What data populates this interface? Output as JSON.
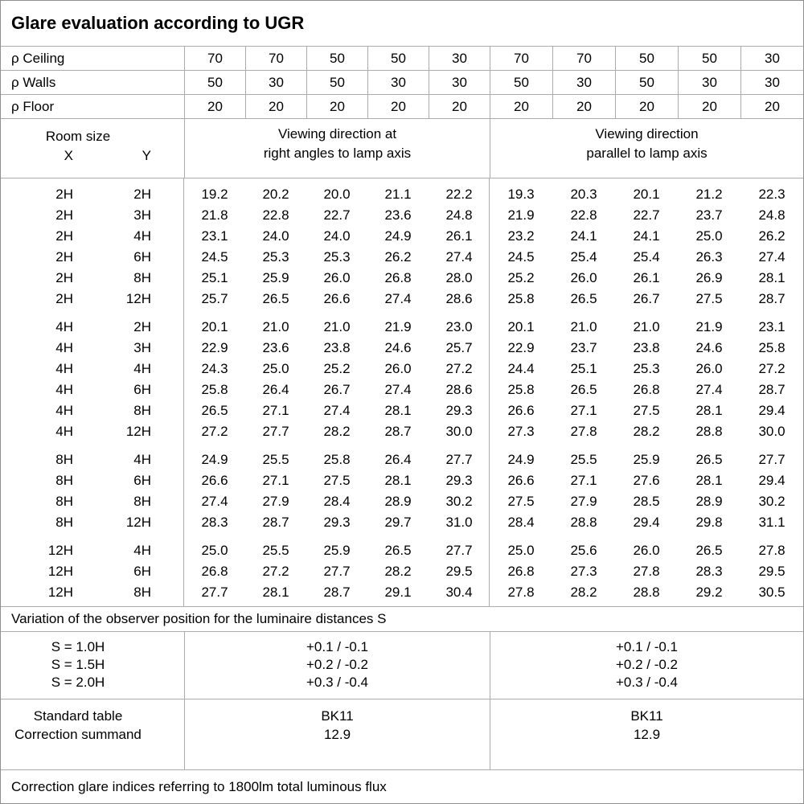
{
  "title": "Glare evaluation according to UGR",
  "header": {
    "rho_ceiling": {
      "label": "ρ Ceiling",
      "values": [
        "70",
        "70",
        "50",
        "50",
        "30",
        "70",
        "70",
        "50",
        "50",
        "30"
      ]
    },
    "rho_walls": {
      "label": "ρ Walls",
      "values": [
        "50",
        "30",
        "50",
        "30",
        "30",
        "50",
        "30",
        "50",
        "30",
        "30"
      ]
    },
    "rho_floor": {
      "label": "ρ Floor",
      "values": [
        "20",
        "20",
        "20",
        "20",
        "20",
        "20",
        "20",
        "20",
        "20",
        "20"
      ]
    },
    "room_size": {
      "label": "Room size",
      "x": "X",
      "y": "Y"
    },
    "group_left": {
      "line1": "Viewing direction at",
      "line2": "right angles to lamp axis"
    },
    "group_right": {
      "line1": "Viewing direction",
      "line2": "parallel to lamp axis"
    }
  },
  "blocks": [
    {
      "rows": [
        {
          "x": "2H",
          "y": "2H",
          "left": [
            "19.2",
            "20.2",
            "20.0",
            "21.1",
            "22.2"
          ],
          "right": [
            "19.3",
            "20.3",
            "20.1",
            "21.2",
            "22.3"
          ]
        },
        {
          "x": "2H",
          "y": "3H",
          "left": [
            "21.8",
            "22.8",
            "22.7",
            "23.6",
            "24.8"
          ],
          "right": [
            "21.9",
            "22.8",
            "22.7",
            "23.7",
            "24.8"
          ]
        },
        {
          "x": "2H",
          "y": "4H",
          "left": [
            "23.1",
            "24.0",
            "24.0",
            "24.9",
            "26.1"
          ],
          "right": [
            "23.2",
            "24.1",
            "24.1",
            "25.0",
            "26.2"
          ]
        },
        {
          "x": "2H",
          "y": "6H",
          "left": [
            "24.5",
            "25.3",
            "25.3",
            "26.2",
            "27.4"
          ],
          "right": [
            "24.5",
            "25.4",
            "25.4",
            "26.3",
            "27.4"
          ]
        },
        {
          "x": "2H",
          "y": "8H",
          "left": [
            "25.1",
            "25.9",
            "26.0",
            "26.8",
            "28.0"
          ],
          "right": [
            "25.2",
            "26.0",
            "26.1",
            "26.9",
            "28.1"
          ]
        },
        {
          "x": "2H",
          "y": "12H",
          "left": [
            "25.7",
            "26.5",
            "26.6",
            "27.4",
            "28.6"
          ],
          "right": [
            "25.8",
            "26.5",
            "26.7",
            "27.5",
            "28.7"
          ]
        }
      ]
    },
    {
      "rows": [
        {
          "x": "4H",
          "y": "2H",
          "left": [
            "20.1",
            "21.0",
            "21.0",
            "21.9",
            "23.0"
          ],
          "right": [
            "20.1",
            "21.0",
            "21.0",
            "21.9",
            "23.1"
          ]
        },
        {
          "x": "4H",
          "y": "3H",
          "left": [
            "22.9",
            "23.6",
            "23.8",
            "24.6",
            "25.7"
          ],
          "right": [
            "22.9",
            "23.7",
            "23.8",
            "24.6",
            "25.8"
          ]
        },
        {
          "x": "4H",
          "y": "4H",
          "left": [
            "24.3",
            "25.0",
            "25.2",
            "26.0",
            "27.2"
          ],
          "right": [
            "24.4",
            "25.1",
            "25.3",
            "26.0",
            "27.2"
          ]
        },
        {
          "x": "4H",
          "y": "6H",
          "left": [
            "25.8",
            "26.4",
            "26.7",
            "27.4",
            "28.6"
          ],
          "right": [
            "25.8",
            "26.5",
            "26.8",
            "27.4",
            "28.7"
          ]
        },
        {
          "x": "4H",
          "y": "8H",
          "left": [
            "26.5",
            "27.1",
            "27.4",
            "28.1",
            "29.3"
          ],
          "right": [
            "26.6",
            "27.1",
            "27.5",
            "28.1",
            "29.4"
          ]
        },
        {
          "x": "4H",
          "y": "12H",
          "left": [
            "27.2",
            "27.7",
            "28.2",
            "28.7",
            "30.0"
          ],
          "right": [
            "27.3",
            "27.8",
            "28.2",
            "28.8",
            "30.0"
          ]
        }
      ]
    },
    {
      "rows": [
        {
          "x": "8H",
          "y": "4H",
          "left": [
            "24.9",
            "25.5",
            "25.8",
            "26.4",
            "27.7"
          ],
          "right": [
            "24.9",
            "25.5",
            "25.9",
            "26.5",
            "27.7"
          ]
        },
        {
          "x": "8H",
          "y": "6H",
          "left": [
            "26.6",
            "27.1",
            "27.5",
            "28.1",
            "29.3"
          ],
          "right": [
            "26.6",
            "27.1",
            "27.6",
            "28.1",
            "29.4"
          ]
        },
        {
          "x": "8H",
          "y": "8H",
          "left": [
            "27.4",
            "27.9",
            "28.4",
            "28.9",
            "30.2"
          ],
          "right": [
            "27.5",
            "27.9",
            "28.5",
            "28.9",
            "30.2"
          ]
        },
        {
          "x": "8H",
          "y": "12H",
          "left": [
            "28.3",
            "28.7",
            "29.3",
            "29.7",
            "31.0"
          ],
          "right": [
            "28.4",
            "28.8",
            "29.4",
            "29.8",
            "31.1"
          ]
        }
      ]
    },
    {
      "rows": [
        {
          "x": "12H",
          "y": "4H",
          "left": [
            "25.0",
            "25.5",
            "25.9",
            "26.5",
            "27.7"
          ],
          "right": [
            "25.0",
            "25.6",
            "26.0",
            "26.5",
            "27.8"
          ]
        },
        {
          "x": "12H",
          "y": "6H",
          "left": [
            "26.8",
            "27.2",
            "27.7",
            "28.2",
            "29.5"
          ],
          "right": [
            "26.8",
            "27.3",
            "27.8",
            "28.3",
            "29.5"
          ]
        },
        {
          "x": "12H",
          "y": "8H",
          "left": [
            "27.7",
            "28.1",
            "28.7",
            "29.1",
            "30.4"
          ],
          "right": [
            "27.8",
            "28.2",
            "28.8",
            "29.2",
            "30.5"
          ]
        }
      ]
    }
  ],
  "variation": {
    "title": "Variation of the observer position for the luminaire distances S",
    "rows": [
      {
        "s": "S = 1.0H",
        "left": "+0.1 / -0.1",
        "right": "+0.1 / -0.1"
      },
      {
        "s": "S = 1.5H",
        "left": "+0.2 / -0.2",
        "right": "+0.2 / -0.2"
      },
      {
        "s": "S = 2.0H",
        "left": "+0.3 / -0.4",
        "right": "+0.3 / -0.4"
      }
    ]
  },
  "summary": {
    "labels": {
      "standard_table": "Standard table",
      "correction_summand": "Correction summand"
    },
    "left": {
      "standard_table": "BK11",
      "correction_summand": "12.9"
    },
    "right": {
      "standard_table": "BK11",
      "correction_summand": "12.9"
    }
  },
  "footer": "Correction glare indices referring to 1800lm total luminous flux"
}
